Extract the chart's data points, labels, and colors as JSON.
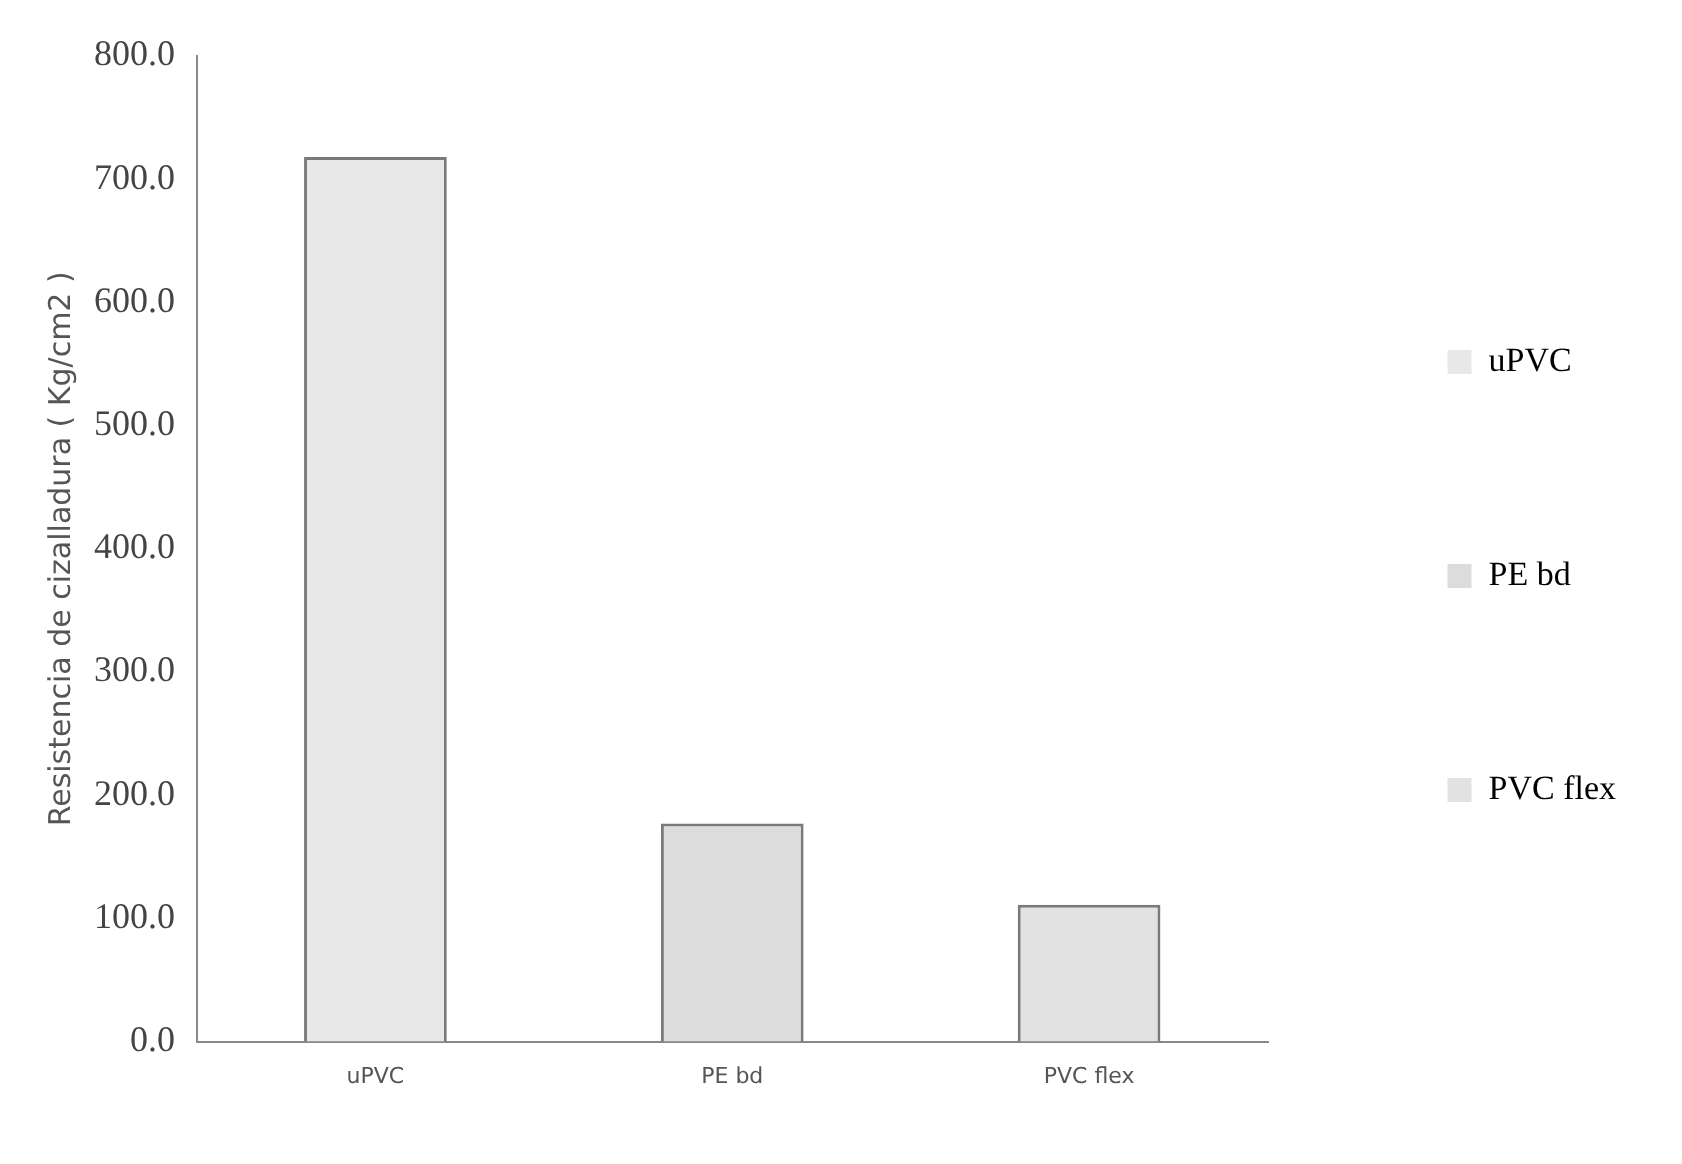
{
  "chart_data": {
    "type": "bar",
    "ylabel": "Resistencia de cizalladura ( Kg/cm2 )",
    "categories": [
      "uPVC",
      "PE bd",
      "PVC flex"
    ],
    "series": [
      {
        "name": "uPVC",
        "color": "#e8e8e8",
        "values": [
          718,
          null,
          null
        ]
      },
      {
        "name": "PE bd",
        "color": "#dcdcdc",
        "values": [
          null,
          177,
          null
        ]
      },
      {
        "name": "PVC flex",
        "color": "#e2e2e2",
        "values": [
          null,
          null,
          111
        ]
      }
    ],
    "ylim": [
      0,
      800
    ],
    "yticks": [
      {
        "value": 0,
        "label": "0.0"
      },
      {
        "value": 100,
        "label": "100.0"
      },
      {
        "value": 200,
        "label": "200.0"
      },
      {
        "value": 300,
        "label": "300.0"
      },
      {
        "value": 400,
        "label": "400.0"
      },
      {
        "value": 500,
        "label": "500.0"
      },
      {
        "value": 600,
        "label": "600.0"
      },
      {
        "value": 700,
        "label": "700.0"
      },
      {
        "value": 800,
        "label": "800.0"
      }
    ],
    "grid": false,
    "legend": "right"
  }
}
